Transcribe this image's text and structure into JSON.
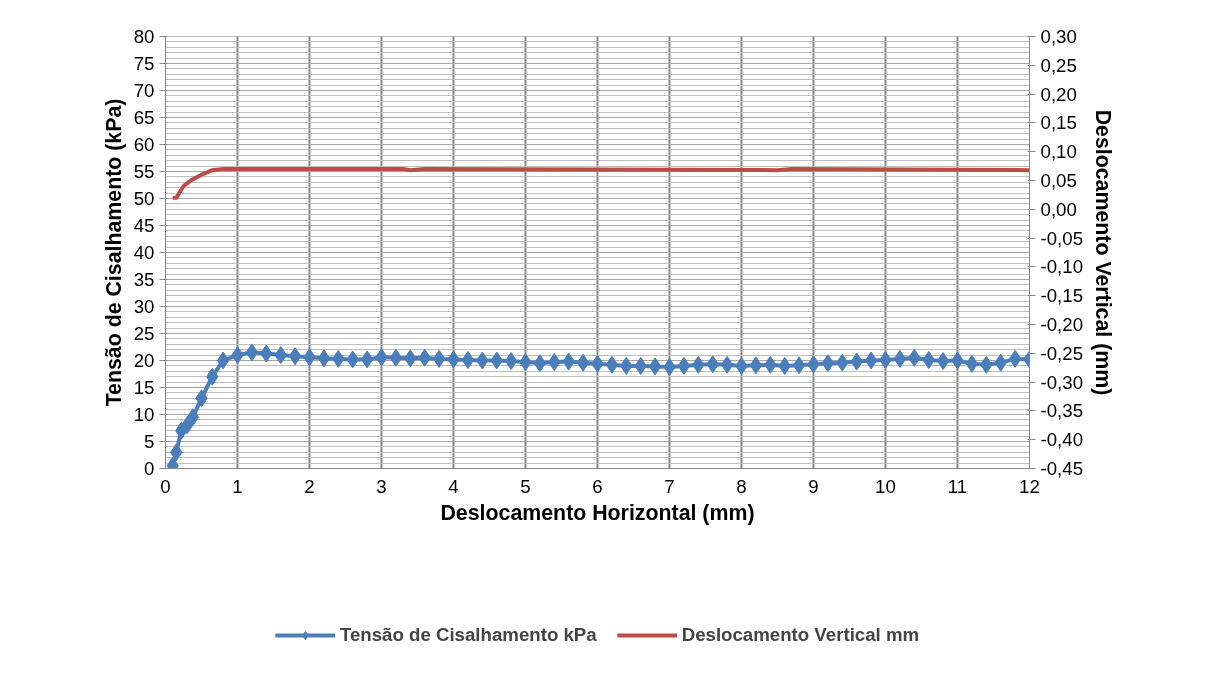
{
  "chart_data": {
    "type": "line",
    "xlabel": "Deslocamento Horizontal (mm)",
    "ylabel": "Tensão de Cisalhamento (kPa)",
    "y2label": "Deslocamento Vertical (mm)",
    "xlim": [
      0,
      12
    ],
    "xticks": [
      0,
      1,
      2,
      3,
      4,
      5,
      6,
      7,
      8,
      9,
      10,
      11,
      12
    ],
    "ylim": [
      0,
      80
    ],
    "yticks": [
      0,
      5,
      10,
      15,
      20,
      25,
      30,
      35,
      40,
      45,
      50,
      55,
      60,
      65,
      70,
      75,
      80
    ],
    "y2lim": [
      -0.45,
      0.3
    ],
    "y2ticks": [
      {
        "value": -0.45,
        "label": "-0,45"
      },
      {
        "value": -0.4,
        "label": "-0,40"
      },
      {
        "value": -0.35,
        "label": "-0,35"
      },
      {
        "value": -0.3,
        "label": "-0,30"
      },
      {
        "value": -0.25,
        "label": "-0,25"
      },
      {
        "value": -0.2,
        "label": "-0,20"
      },
      {
        "value": -0.15,
        "label": "-0,15"
      },
      {
        "value": -0.1,
        "label": "-0,10"
      },
      {
        "value": -0.05,
        "label": "-0,05"
      },
      {
        "value": 0,
        "label": "0,00"
      },
      {
        "value": 0.05,
        "label": "0,05"
      },
      {
        "value": 0.1,
        "label": "0,10"
      },
      {
        "value": 0.15,
        "label": "0,15"
      },
      {
        "value": 0.2,
        "label": "0,20"
      },
      {
        "value": 0.25,
        "label": "0,25"
      },
      {
        "value": 0.3,
        "label": "0,30"
      }
    ],
    "grid": true,
    "legend": "bottom",
    "series": [
      {
        "name": "Tensão de Cisalhamento kPa",
        "color": "#4a7ebb",
        "marker": "diamond",
        "x": [
          0.1,
          0.15,
          0.22,
          0.3,
          0.38,
          0.5,
          0.65,
          0.8,
          1.0,
          1.2,
          1.4,
          1.6,
          1.8,
          2.0,
          2.2,
          2.4,
          2.6,
          2.8,
          3.0,
          3.2,
          3.4,
          3.6,
          3.8,
          4.0,
          4.2,
          4.4,
          4.6,
          4.8,
          5.0,
          5.2,
          5.4,
          5.6,
          5.8,
          6.0,
          6.2,
          6.4,
          6.6,
          6.8,
          7.0,
          7.2,
          7.4,
          7.6,
          7.8,
          8.0,
          8.2,
          8.4,
          8.6,
          8.8,
          9.0,
          9.2,
          9.4,
          9.6,
          9.8,
          10.0,
          10.2,
          10.4,
          10.6,
          10.8,
          11.0,
          11.2,
          11.4,
          11.6,
          11.8,
          12.0
        ],
        "values": [
          0.5,
          3,
          7,
          8,
          9.5,
          13,
          17,
          20,
          21,
          21.5,
          21.3,
          21,
          20.8,
          20.6,
          20.4,
          20.3,
          20.2,
          20.2,
          20.6,
          20.5,
          20.4,
          20.5,
          20.3,
          20.2,
          20.1,
          20,
          20,
          19.9,
          19.7,
          19.5,
          19.7,
          19.8,
          19.6,
          19.4,
          19.2,
          19,
          19,
          18.9,
          18.8,
          19,
          19.2,
          19.3,
          19.2,
          19,
          19.1,
          19.2,
          19,
          19.1,
          19.3,
          19.5,
          19.6,
          19.8,
          20,
          20.1,
          20.3,
          20.5,
          20.1,
          19.9,
          20,
          19.4,
          19.2,
          19.6,
          20.3,
          20.2
        ]
      },
      {
        "name": "Deslocamento Vertical mm",
        "color": "#be4b48",
        "axis": "y2",
        "marker": "none",
        "x": [
          0.1,
          0.15,
          0.25,
          0.35,
          0.5,
          0.65,
          0.8,
          1.0,
          3.3,
          3.4,
          3.6,
          8.5,
          8.7,
          12.0
        ],
        "values": [
          0.02,
          0.02,
          0.04,
          0.05,
          0.06,
          0.068,
          0.07,
          0.07,
          0.07,
          0.068,
          0.07,
          0.068,
          0.07,
          0.068
        ]
      }
    ]
  }
}
